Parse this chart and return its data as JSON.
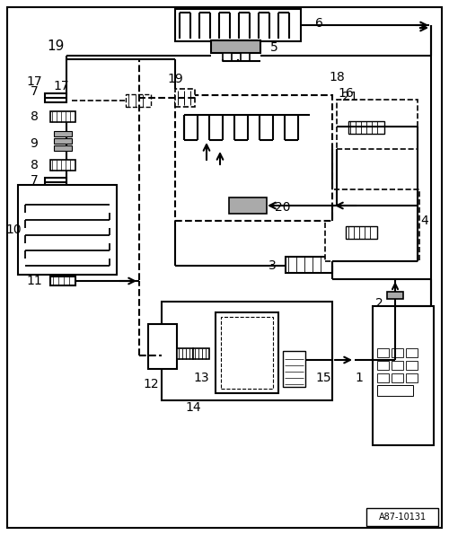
{
  "background_color": "#ffffff",
  "line_color": "#000000",
  "gray_color": "#aaaaaa",
  "figure_id": "A87-10131",
  "lw_main": 1.5,
  "lw_thin": 1.0,
  "fontsize_label": 10,
  "fontsize_id": 7
}
